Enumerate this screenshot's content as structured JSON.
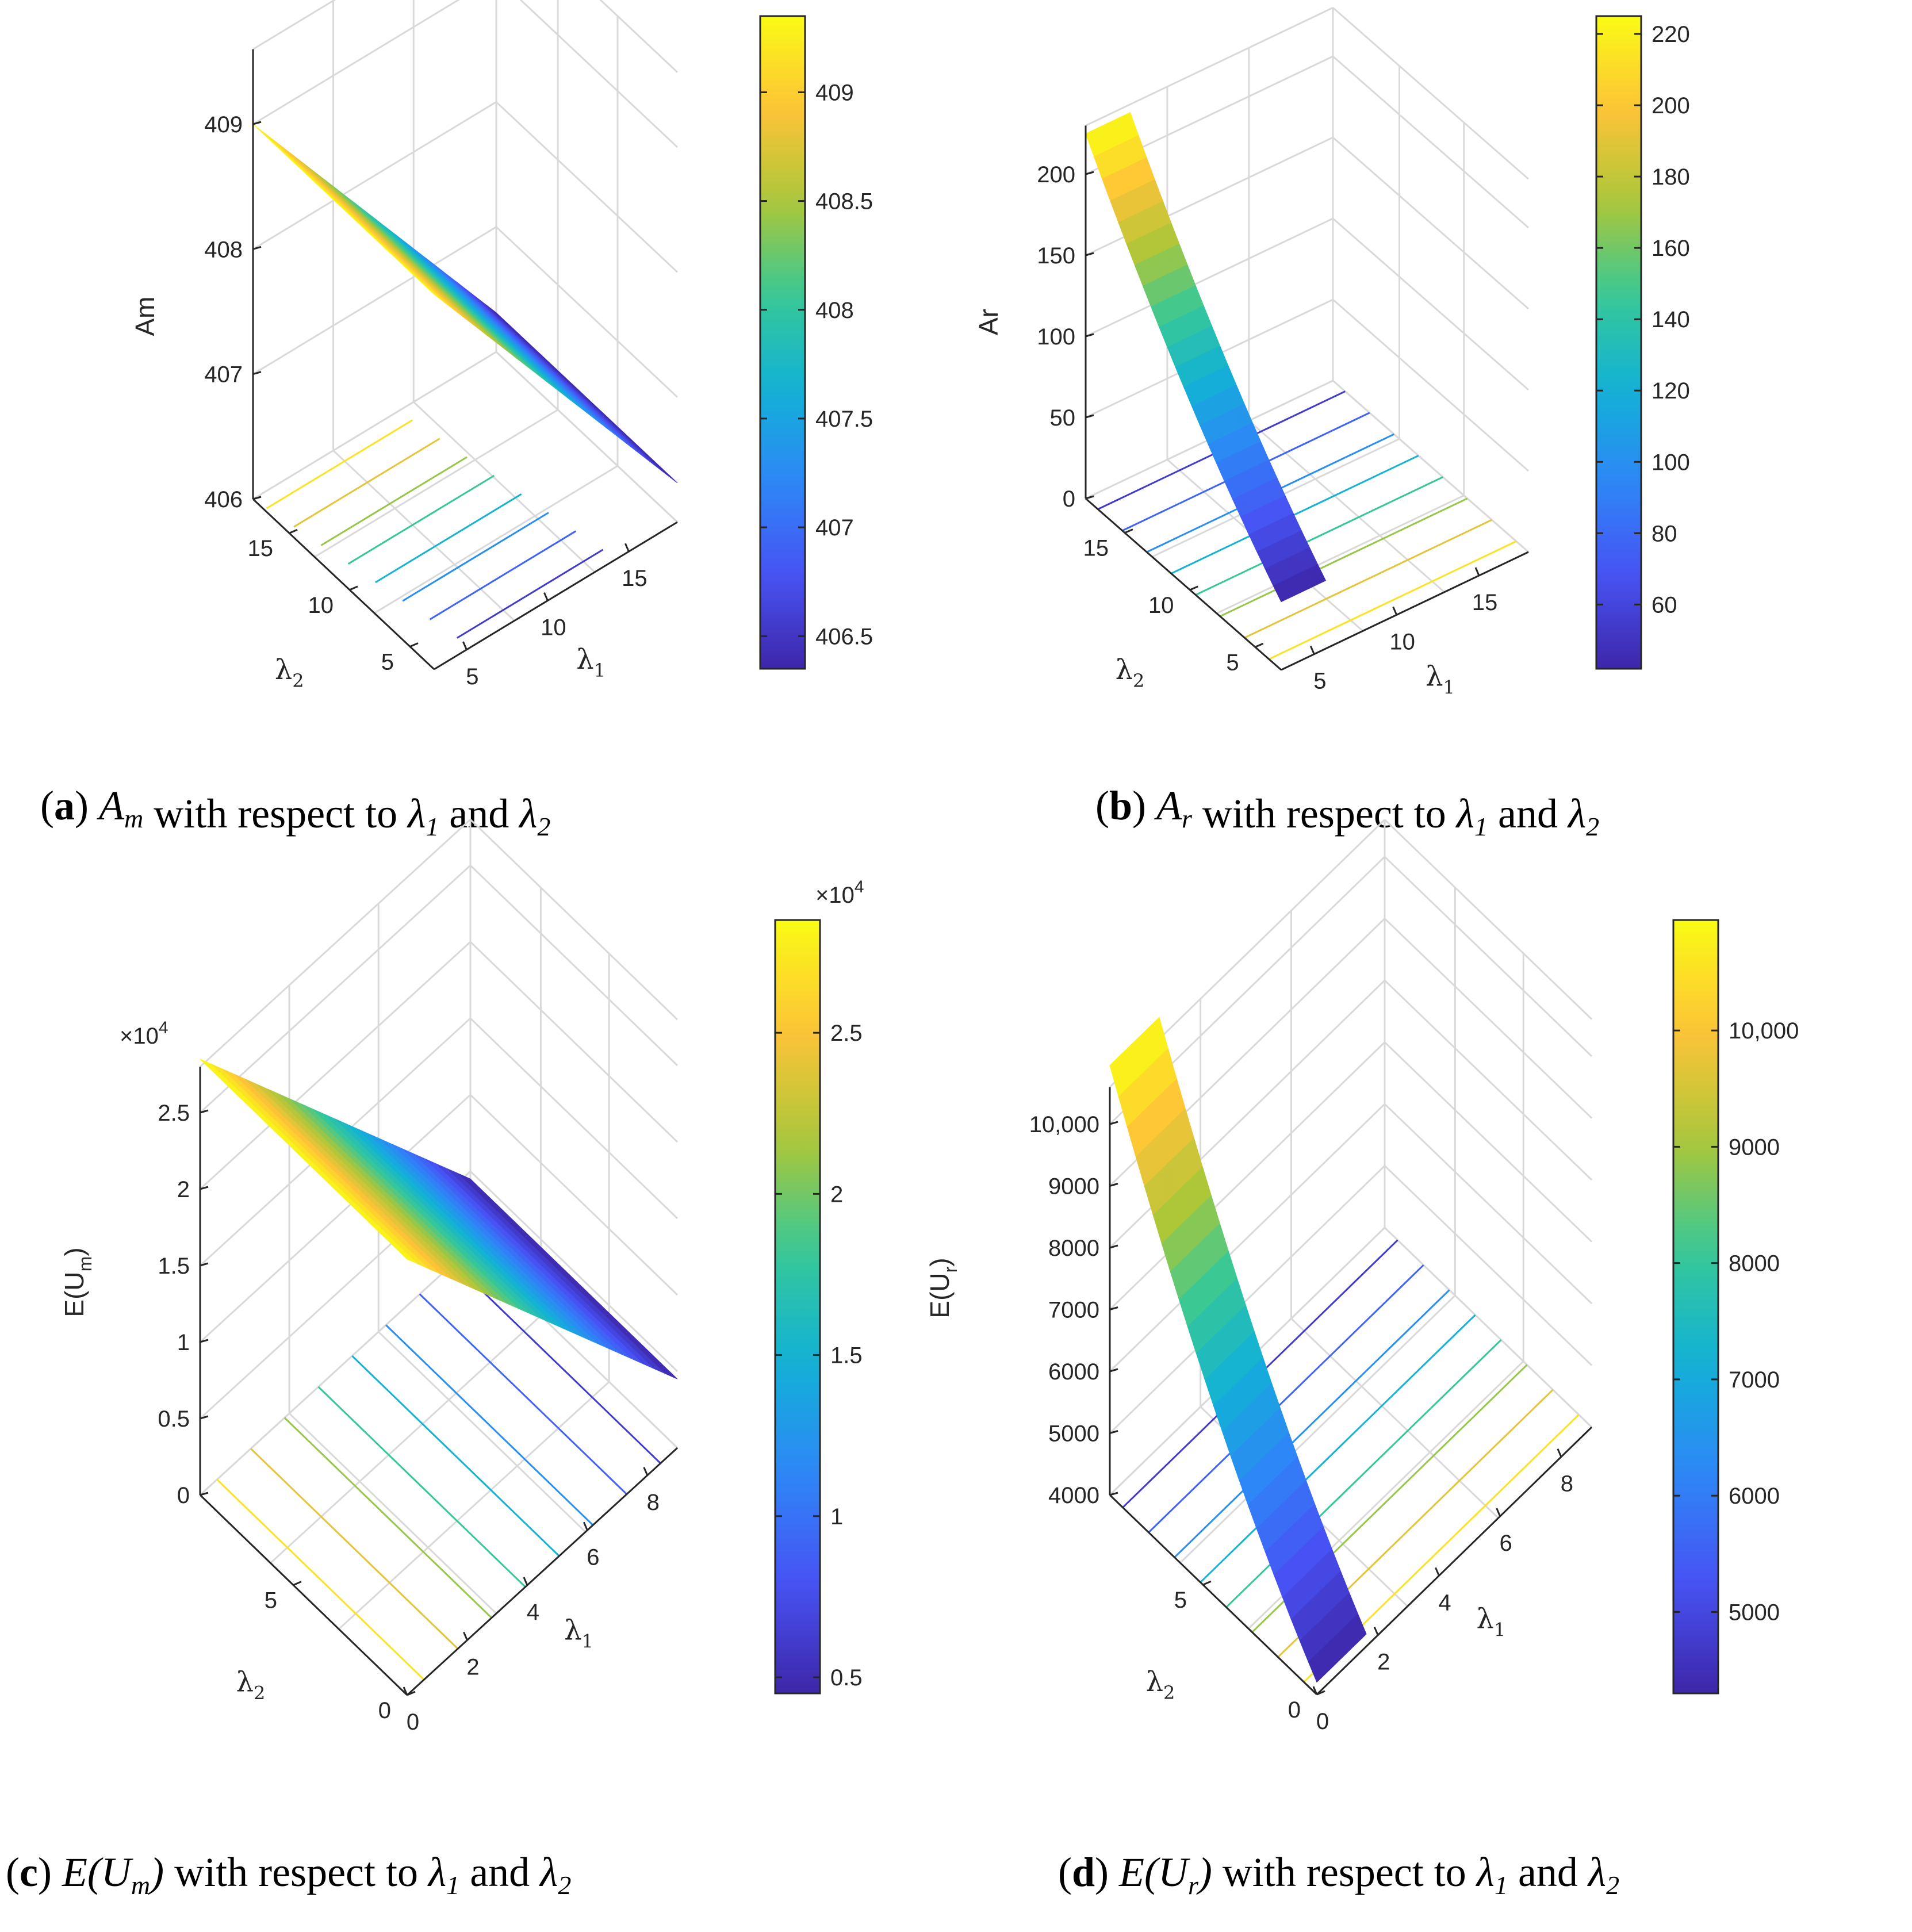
{
  "colormap": "parula",
  "chart_data": [
    {
      "id": "a",
      "type": "surface",
      "caption": {
        "letter": "a",
        "var": "A",
        "var_sub": "m",
        "text": "with respect to",
        "l1": "λ",
        "l1_sub": "1",
        "and": "and",
        "l2": "λ",
        "l2_sub": "2"
      },
      "zlabel": "Am",
      "xlabel": "λ",
      "xlabel_sub": "1",
      "ylabel": "λ",
      "ylabel_sub": "2",
      "zticks": [
        "406",
        "407",
        "408",
        "409"
      ],
      "xticks": [
        "5",
        "10",
        "15"
      ],
      "yticks": [
        "5",
        "10",
        "15"
      ],
      "colorbar": {
        "ticks": [
          "406.5",
          "407",
          "407.5",
          "408",
          "408.5",
          "409"
        ],
        "range": [
          406.35,
          409.35
        ],
        "exponent": ""
      },
      "surface": {
        "z_low": 406.35,
        "z_high": 409.35,
        "x_range": [
          1,
          15
        ],
        "y_range": [
          1,
          15
        ]
      }
    },
    {
      "id": "b",
      "type": "surface",
      "caption": {
        "letter": "b",
        "var": "A",
        "var_sub": "r",
        "text": "with respect to",
        "l1": "λ",
        "l1_sub": "1",
        "and": "and",
        "l2": "λ",
        "l2_sub": "2"
      },
      "zlabel": "Ar",
      "xlabel": "λ",
      "xlabel_sub": "1",
      "ylabel": "λ",
      "ylabel_sub": "2",
      "zticks": [
        "0",
        "50",
        "100",
        "150",
        "200"
      ],
      "xticks": [
        "5",
        "10",
        "15"
      ],
      "yticks": [
        "5",
        "10",
        "15"
      ],
      "colorbar": {
        "ticks": [
          "60",
          "80",
          "100",
          "120",
          "140",
          "160",
          "180",
          "200",
          "220"
        ],
        "range": [
          42,
          225
        ],
        "exponent": ""
      },
      "surface": {
        "z_low": 42,
        "z_high": 225,
        "x_range": [
          1,
          15
        ],
        "y_range": [
          1,
          15
        ]
      }
    },
    {
      "id": "c",
      "type": "surface",
      "caption": {
        "letter": "c",
        "var": "E(U",
        "var_sub": "m",
        "var_close": ")",
        "text": "with respect to",
        "l1": "λ",
        "l1_sub": "1",
        "and": "and",
        "l2": "λ",
        "l2_sub": "2"
      },
      "zlabel": "E(U",
      "zlabel_sub": "m",
      "zlabel_close": ")",
      "xlabel": "λ",
      "xlabel_sub": "1",
      "ylabel": "λ",
      "ylabel_sub": "2",
      "zticks": [
        "0",
        "0.5",
        "1",
        "1.5",
        "2",
        "2.5"
      ],
      "zexponent": "×10",
      "zexponent_power": "4",
      "xticks": [
        "0",
        "2",
        "4",
        "6",
        "8"
      ],
      "yticks": [
        "0",
        "5"
      ],
      "colorbar": {
        "ticks": [
          "0.5",
          "1",
          "1.5",
          "2",
          "2.5"
        ],
        "range": [
          0.45,
          2.85
        ],
        "exponent": "×10",
        "exponent_power": "4"
      },
      "surface": {
        "z_low": 0.45,
        "z_high": 2.85,
        "x_range": [
          0,
          9
        ],
        "y_range": [
          0,
          9
        ]
      }
    },
    {
      "id": "d",
      "type": "surface",
      "caption": {
        "letter": "d",
        "var": "E(U",
        "var_sub": "r",
        "var_close": ")",
        "text": "with respect to",
        "l1": "λ",
        "l1_sub": "1",
        "and": "and",
        "l2": "λ",
        "l2_sub": "2"
      },
      "zlabel": "E(U",
      "zlabel_sub": "r",
      "zlabel_close": ")",
      "xlabel": "λ",
      "xlabel_sub": "1",
      "ylabel": "λ",
      "ylabel_sub": "2",
      "zticks": [
        "4000",
        "5000",
        "6000",
        "7000",
        "8000",
        "9000",
        "10,000"
      ],
      "xticks": [
        "0",
        "2",
        "4",
        "6",
        "8"
      ],
      "yticks": [
        "0",
        "5"
      ],
      "colorbar": {
        "ticks": [
          "5000",
          "6000",
          "7000",
          "8000",
          "9000",
          "10,000"
        ],
        "range": [
          4300,
          10950
        ],
        "exponent": ""
      },
      "surface": {
        "z_low": 4200,
        "z_high": 10950,
        "x_range": [
          0,
          9
        ],
        "y_range": [
          0,
          9
        ]
      }
    }
  ]
}
